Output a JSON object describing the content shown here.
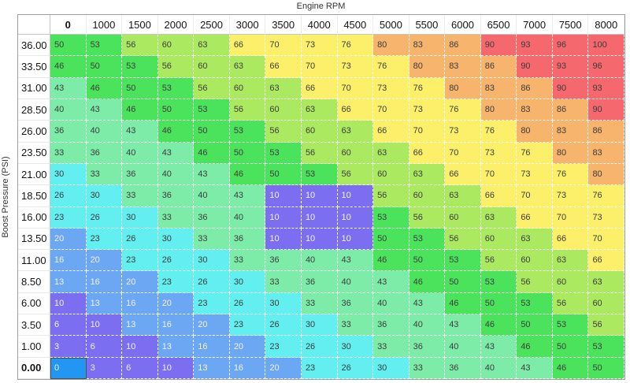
{
  "title": "Engine RPM",
  "y_axis_label": "Boost Pressure (PSI)",
  "grid": {
    "columns": [
      "0",
      "1000",
      "1500",
      "2000",
      "2500",
      "3000",
      "3500",
      "4000",
      "4500",
      "5000",
      "5500",
      "6000",
      "6500",
      "7000",
      "7500",
      "8000"
    ],
    "rows": [
      {
        "label": "36.00",
        "values": [
          50,
          53,
          56,
          60,
          63,
          66,
          70,
          73,
          76,
          80,
          83,
          86,
          90,
          93,
          96,
          100
        ]
      },
      {
        "label": "33.50",
        "values": [
          46,
          50,
          53,
          56,
          60,
          63,
          66,
          70,
          73,
          76,
          80,
          83,
          86,
          90,
          93,
          96
        ]
      },
      {
        "label": "31.00",
        "values": [
          43,
          46,
          50,
          53,
          56,
          60,
          63,
          66,
          70,
          73,
          76,
          80,
          83,
          86,
          90,
          93
        ]
      },
      {
        "label": "28.50",
        "values": [
          40,
          43,
          46,
          50,
          53,
          56,
          60,
          63,
          66,
          70,
          73,
          76,
          80,
          83,
          86,
          90
        ]
      },
      {
        "label": "26.00",
        "values": [
          36,
          40,
          43,
          46,
          50,
          53,
          56,
          60,
          63,
          66,
          70,
          73,
          76,
          80,
          83,
          86
        ]
      },
      {
        "label": "23.50",
        "values": [
          33,
          36,
          40,
          43,
          46,
          50,
          53,
          56,
          60,
          63,
          66,
          70,
          73,
          76,
          80,
          83
        ]
      },
      {
        "label": "21.00",
        "values": [
          30,
          33,
          36,
          40,
          43,
          46,
          50,
          53,
          56,
          60,
          63,
          66,
          70,
          73,
          76,
          80
        ]
      },
      {
        "label": "18.50",
        "values": [
          26,
          30,
          33,
          36,
          40,
          43,
          10,
          10,
          10,
          56,
          60,
          63,
          66,
          70,
          73,
          76
        ]
      },
      {
        "label": "16.00",
        "values": [
          23,
          26,
          30,
          33,
          36,
          40,
          10,
          10,
          10,
          53,
          56,
          60,
          63,
          66,
          70,
          73
        ]
      },
      {
        "label": "13.50",
        "values": [
          20,
          23,
          26,
          30,
          33,
          36,
          10,
          10,
          10,
          50,
          53,
          56,
          60,
          63,
          66,
          70
        ]
      },
      {
        "label": "11.00",
        "values": [
          16,
          20,
          23,
          26,
          30,
          33,
          36,
          40,
          43,
          46,
          50,
          53,
          56,
          60,
          63,
          66
        ]
      },
      {
        "label": "8.50",
        "values": [
          13,
          16,
          20,
          23,
          26,
          30,
          33,
          36,
          40,
          43,
          46,
          50,
          53,
          56,
          60,
          63
        ]
      },
      {
        "label": "6.00",
        "values": [
          10,
          13,
          16,
          20,
          23,
          26,
          30,
          33,
          36,
          40,
          43,
          46,
          50,
          53,
          56,
          60
        ]
      },
      {
        "label": "3.50",
        "values": [
          6,
          10,
          13,
          16,
          20,
          23,
          26,
          30,
          33,
          36,
          40,
          43,
          46,
          50,
          53,
          56
        ]
      },
      {
        "label": "1.00",
        "values": [
          3,
          6,
          10,
          13,
          16,
          20,
          23,
          26,
          30,
          33,
          36,
          40,
          43,
          46,
          50,
          53
        ]
      },
      {
        "label": "0.00",
        "values": [
          0,
          3,
          6,
          10,
          13,
          16,
          20,
          23,
          26,
          30,
          33,
          36,
          40,
          43,
          46,
          50
        ]
      }
    ],
    "selected": {
      "row_index": 15,
      "col_index": 0,
      "row_label": "0.00",
      "column_label": "0",
      "value": 0
    }
  },
  "colors": {
    "selected_cell_bg": "#2196f3",
    "selected_cell_border": "#4f4f4f",
    "heatmap_bands": [
      {
        "max": 12,
        "bg": "#7c6ef0",
        "text": "light"
      },
      {
        "max": 22,
        "bg": "#6ba7f3",
        "text": "light"
      },
      {
        "max": 32,
        "bg": "#63eef0",
        "text": "dark"
      },
      {
        "max": 45,
        "bg": "#7deca8",
        "text": "dark"
      },
      {
        "max": 55,
        "bg": "#4be35c",
        "text": "dark"
      },
      {
        "max": 65,
        "bg": "#abe961",
        "text": "dark"
      },
      {
        "max": 79,
        "bg": "#fcf06a",
        "text": "dark"
      },
      {
        "max": 89,
        "bg": "#f6b46c",
        "text": "dark"
      },
      {
        "max": 100,
        "bg": "#f5686e",
        "text": "dark"
      }
    ]
  }
}
